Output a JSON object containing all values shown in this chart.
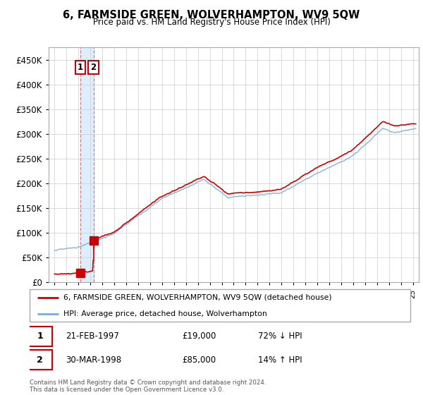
{
  "title": "6, FARMSIDE GREEN, WOLVERHAMPTON, WV9 5QW",
  "subtitle": "Price paid vs. HM Land Registry's House Price Index (HPI)",
  "legend_line1": "6, FARMSIDE GREEN, WOLVERHAMPTON, WV9 5QW (detached house)",
  "legend_line2": "HPI: Average price, detached house, Wolverhampton",
  "annotation1_date": "21-FEB-1997",
  "annotation1_price": "£19,000",
  "annotation1_hpi": "72% ↓ HPI",
  "annotation2_date": "30-MAR-1998",
  "annotation2_price": "£85,000",
  "annotation2_hpi": "14% ↑ HPI",
  "price_color": "#cc0000",
  "hpi_color": "#7aadd4",
  "background_color": "#ffffff",
  "plot_bg_color": "#ffffff",
  "grid_color": "#cccccc",
  "shade_color": "#ddeeff",
  "ylim": [
    0,
    475000
  ],
  "xlim": [
    1994.5,
    2025.5
  ],
  "yticks": [
    0,
    50000,
    100000,
    150000,
    200000,
    250000,
    300000,
    350000,
    400000,
    450000
  ],
  "footer": "Contains HM Land Registry data © Crown copyright and database right 2024.\nThis data is licensed under the Open Government Licence v3.0.",
  "sale1_x": 1997.13,
  "sale2_x": 1998.25,
  "sale1_price": 19000,
  "sale2_price": 85000
}
